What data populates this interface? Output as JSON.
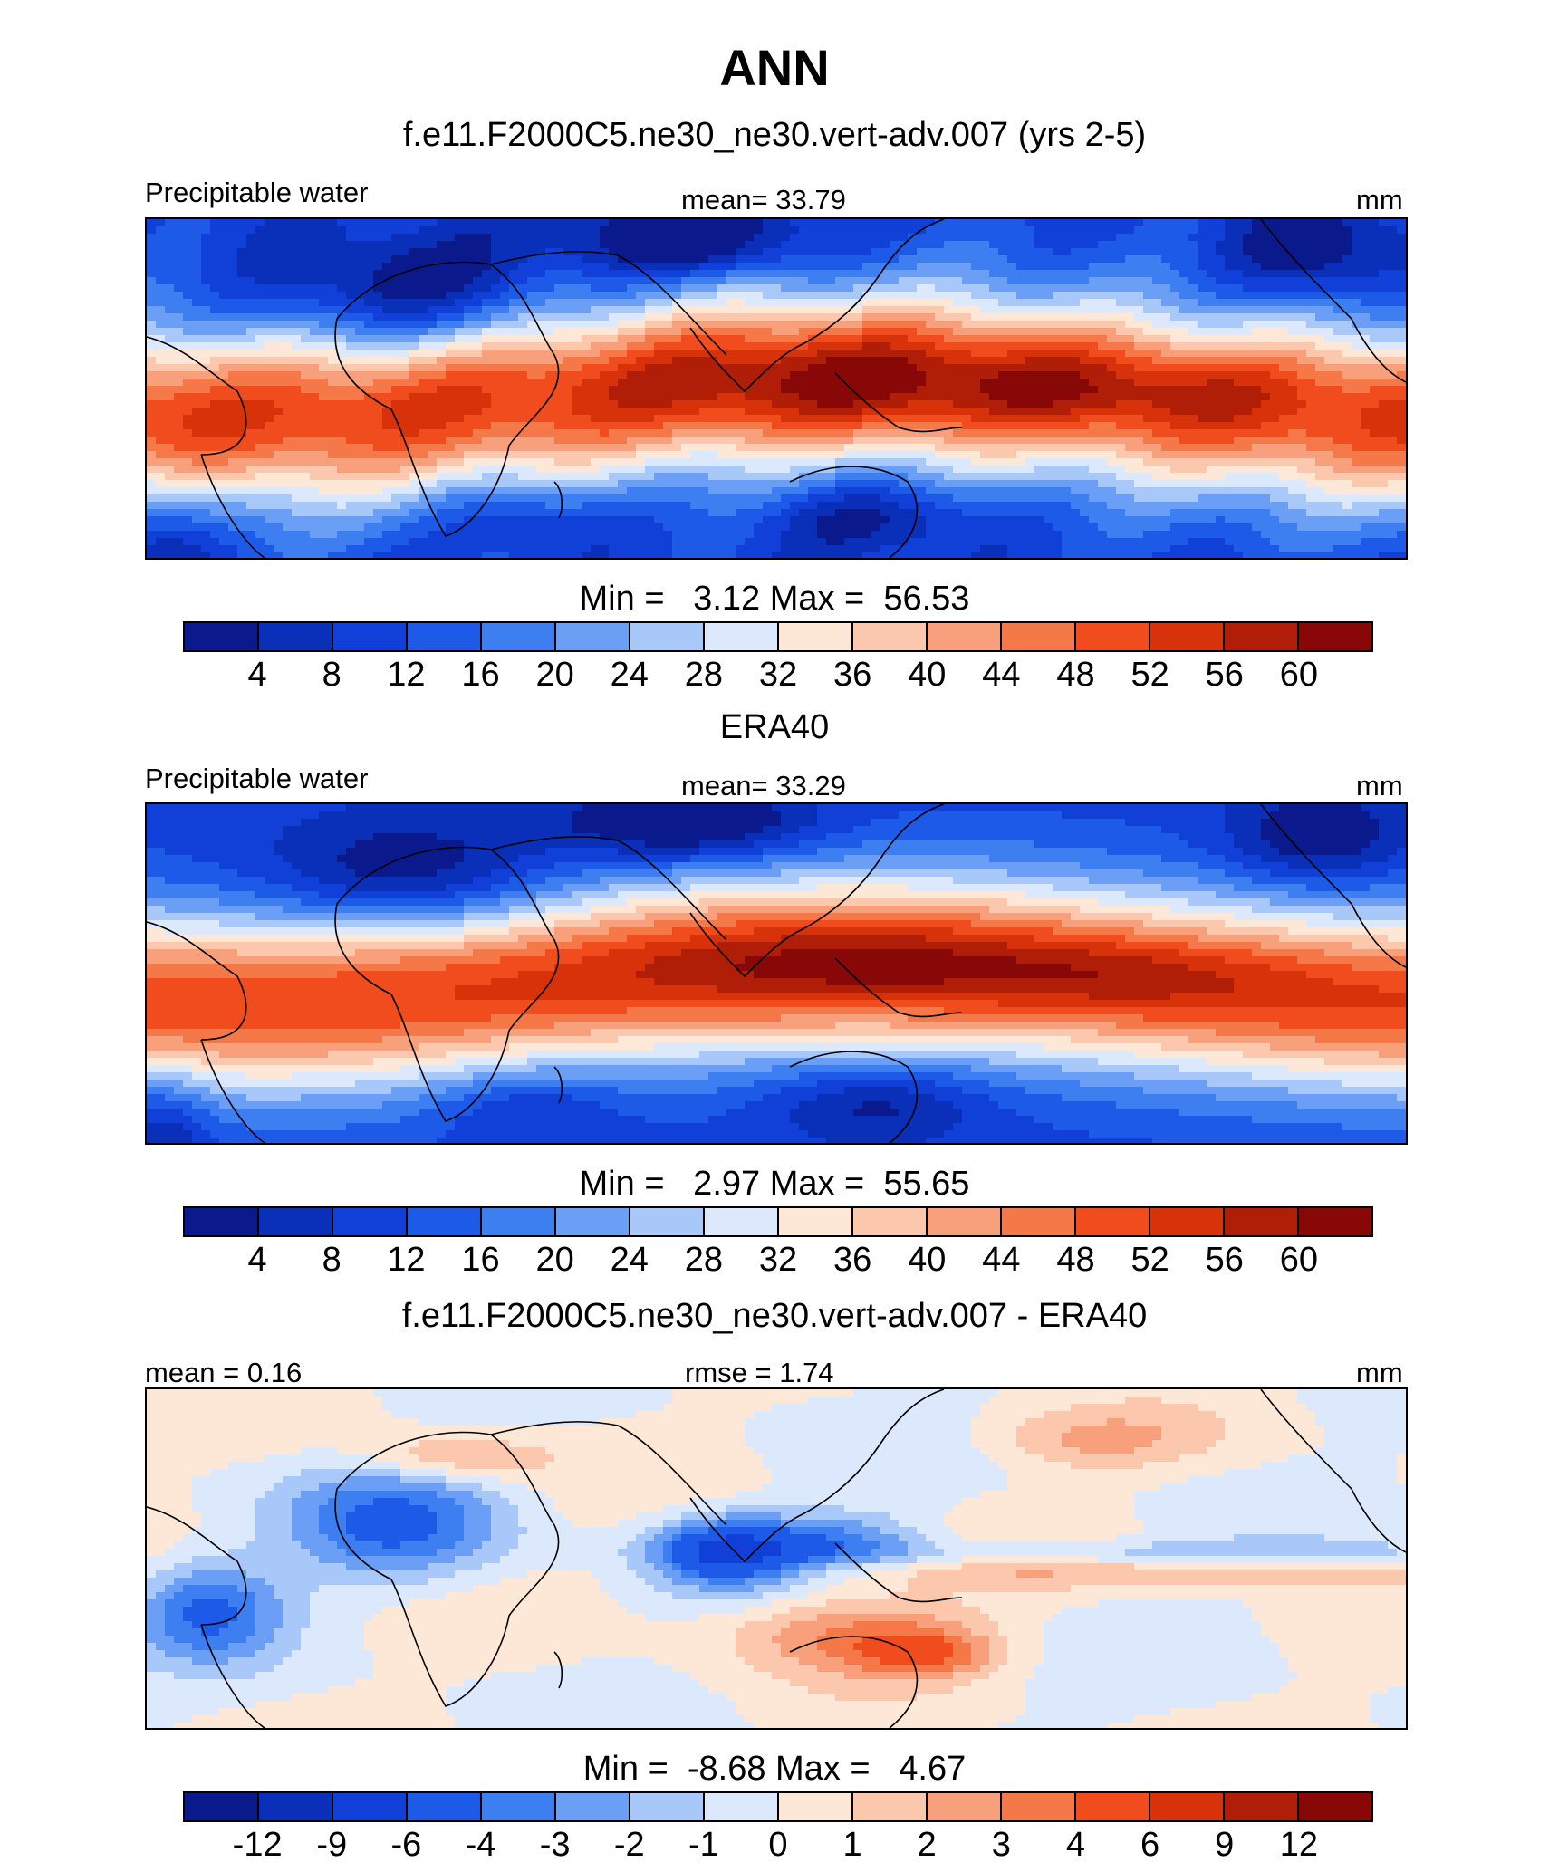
{
  "figure": {
    "title": "ANN"
  },
  "panels": [
    {
      "title": "f.e11.F2000C5.ne30_ne30.vert-adv.007 (yrs 2-5)",
      "left_label": "Precipitable water",
      "center_label": "mean=  33.79",
      "right_label": "mm",
      "minmax": "Min =   3.12 Max =  56.53",
      "field": "model",
      "colorbar": {
        "colors": [
          "#0a1a8c",
          "#0a2fb8",
          "#1040d8",
          "#1e5ae8",
          "#3d7ef0",
          "#6b9ff5",
          "#a8c8fa",
          "#dce9fc",
          "#fde8d8",
          "#fbc8ae",
          "#f8a07c",
          "#f57848",
          "#f04c1e",
          "#d8320a",
          "#b01e08",
          "#880808"
        ],
        "ticks": [
          "4",
          "8",
          "12",
          "16",
          "20",
          "24",
          "28",
          "32",
          "36",
          "40",
          "44",
          "48",
          "52",
          "56",
          "60"
        ]
      }
    },
    {
      "title": "ERA40",
      "left_label": "Precipitable water",
      "center_label": "mean=  33.29",
      "right_label": "mm",
      "minmax": "Min =   2.97 Max =  55.65",
      "field": "obs",
      "colorbar": {
        "colors": [
          "#0a1a8c",
          "#0a2fb8",
          "#1040d8",
          "#1e5ae8",
          "#3d7ef0",
          "#6b9ff5",
          "#a8c8fa",
          "#dce9fc",
          "#fde8d8",
          "#fbc8ae",
          "#f8a07c",
          "#f57848",
          "#f04c1e",
          "#d8320a",
          "#b01e08",
          "#880808"
        ],
        "ticks": [
          "4",
          "8",
          "12",
          "16",
          "20",
          "24",
          "28",
          "32",
          "36",
          "40",
          "44",
          "48",
          "52",
          "56",
          "60"
        ]
      }
    },
    {
      "title": "f.e11.F2000C5.ne30_ne30.vert-adv.007 - ERA40",
      "left_label": "mean =   0.16",
      "center_label": "rmse =   1.74",
      "right_label": "mm",
      "minmax": "Min =  -8.68 Max =   4.67",
      "field": "diff",
      "colorbar": {
        "colors": [
          "#0a1a8c",
          "#0a2fb8",
          "#1040d8",
          "#1e5ae8",
          "#3d7ef0",
          "#6b9ff5",
          "#a8c8fa",
          "#dce9fc",
          "#fde8d8",
          "#fbc8ae",
          "#f8a07c",
          "#f57848",
          "#f04c1e",
          "#d8320a",
          "#b01e08",
          "#880808"
        ],
        "ticks": [
          "-12",
          "-9",
          "-6",
          "-4",
          "-3",
          "-2",
          "-1",
          "0",
          "1",
          "2",
          "3",
          "4",
          "6",
          "9",
          "12"
        ]
      }
    }
  ]
}
